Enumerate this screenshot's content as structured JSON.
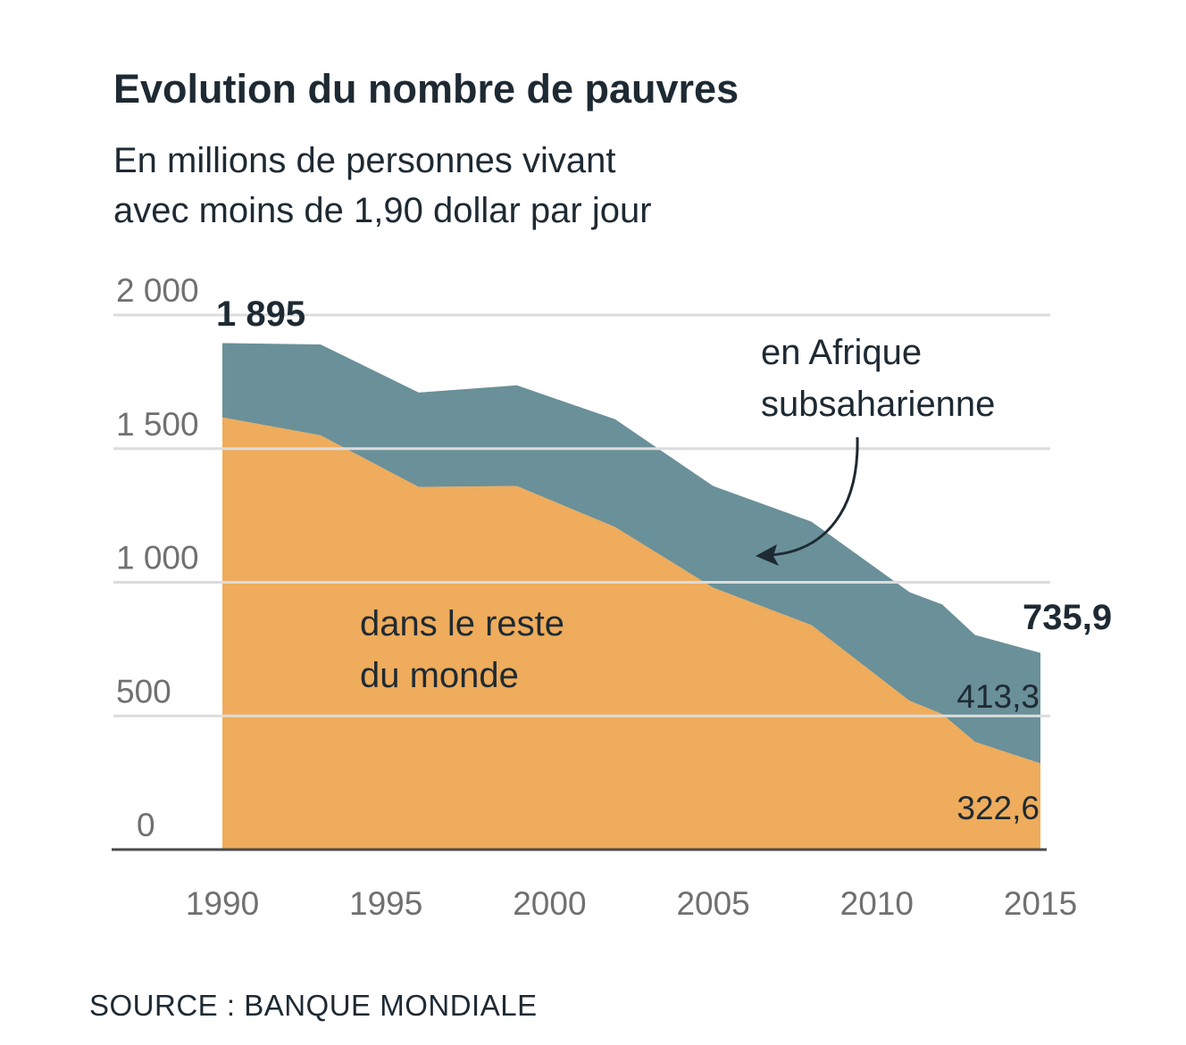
{
  "chart_data": {
    "type": "area",
    "stacked": true,
    "title": "Evolution du nombre de pauvres",
    "subtitle": [
      "En millions de personnes vivant",
      "avec moins de 1,90 dollar par jour"
    ],
    "xlabel": "",
    "ylabel": "",
    "x": [
      1990,
      1993,
      1996,
      1999,
      2002,
      2005,
      2008,
      2011,
      2012,
      2013,
      2015
    ],
    "xlim": [
      1990,
      2015
    ],
    "ylim": [
      0,
      2000
    ],
    "x_ticks": [
      "1990",
      "1995",
      "2000",
      "2005",
      "2010",
      "2015"
    ],
    "y_ticks": [
      "0",
      "500",
      "1 000",
      "1 500",
      "2 000"
    ],
    "grid": true,
    "series": [
      {
        "name": "dans le reste du monde",
        "name_lines": [
          "dans le reste",
          "du monde"
        ],
        "color": "#eeac5c",
        "values": [
          1617,
          1550,
          1357,
          1360,
          1207,
          980,
          840,
          557,
          507,
          403,
          322.6
        ]
      },
      {
        "name": "en Afrique subsaharienne",
        "name_lines": [
          "en Afrique",
          "subsaharienne"
        ],
        "color": "#6a9099",
        "values": [
          278,
          340,
          353,
          377,
          403,
          380,
          387,
          406,
          410,
          400,
          413.3
        ]
      }
    ],
    "annotations": {
      "total_start": "1 895",
      "total_end": "735,9",
      "africa_end": "413,3",
      "rest_end": "322,6"
    },
    "source": "SOURCE : BANQUE MONDIALE"
  }
}
